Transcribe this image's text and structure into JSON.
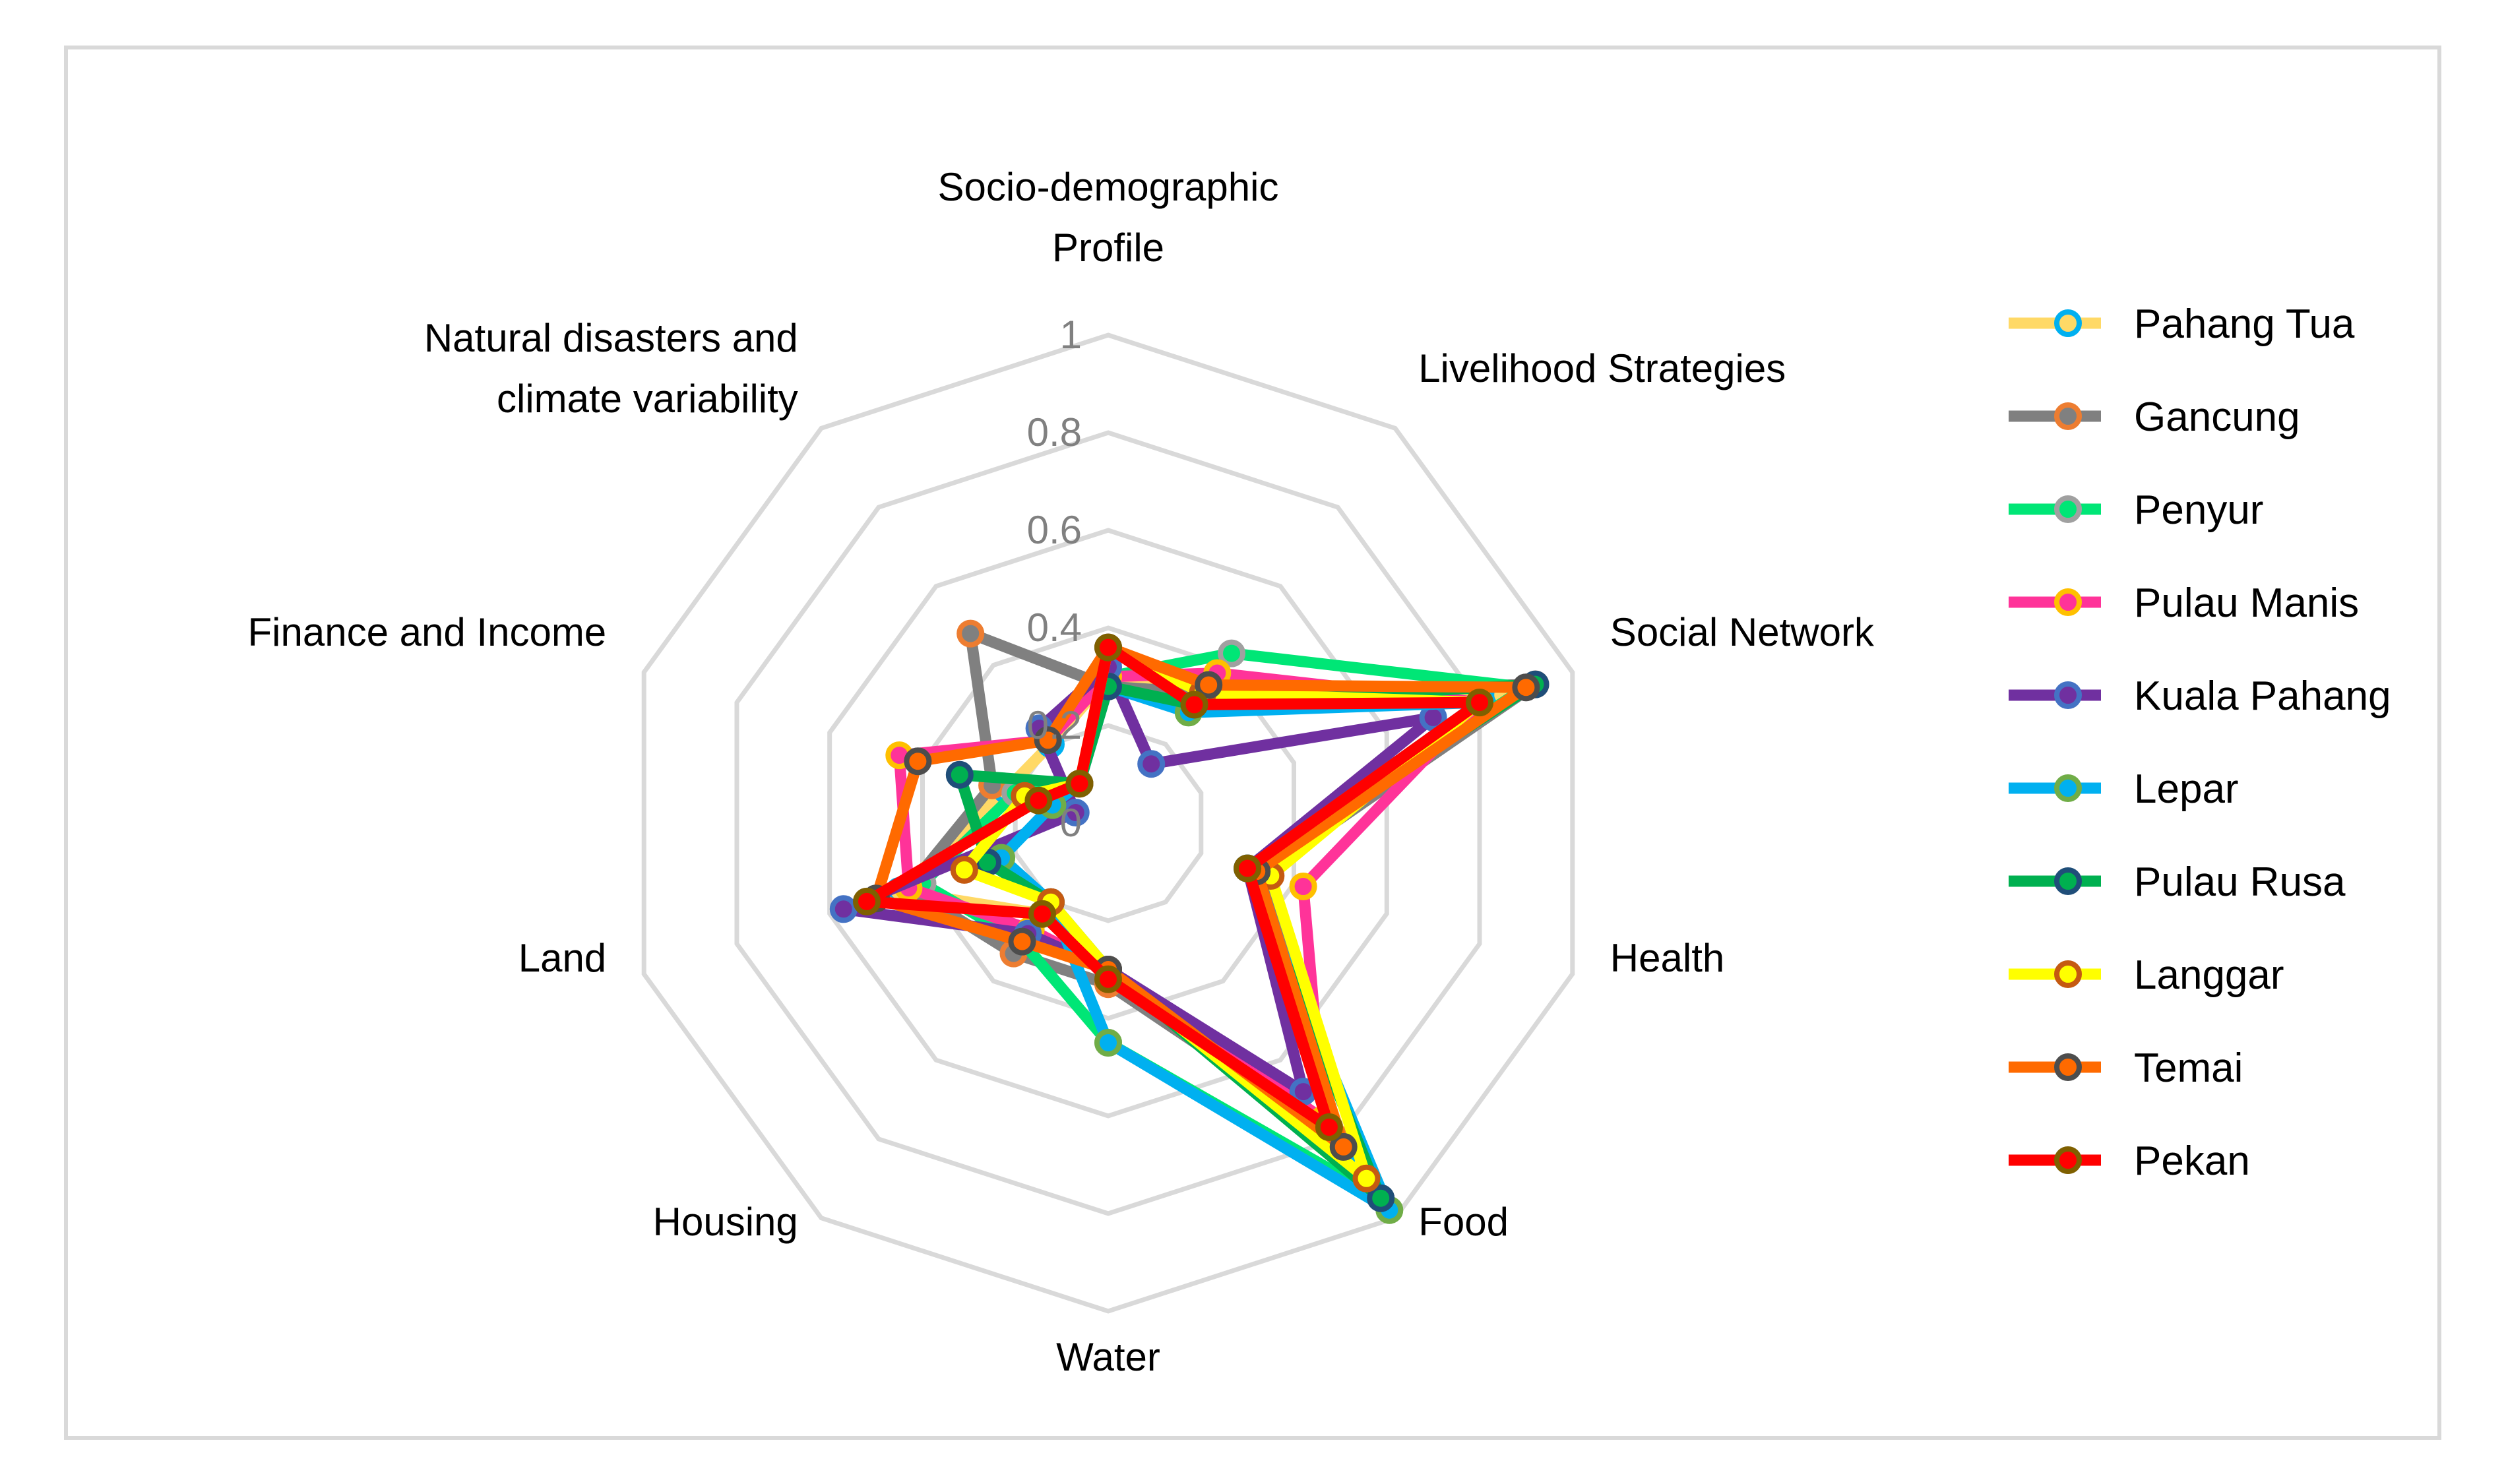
{
  "chart_data": {
    "type": "radar",
    "title": "",
    "axes": [
      [
        "Socio-demographic",
        "Profile"
      ],
      [
        "Livelihood Strategies"
      ],
      [
        "Social Network"
      ],
      [
        "Health"
      ],
      [
        "Food"
      ],
      [
        "Water"
      ],
      [
        "Housing"
      ],
      [
        "Land"
      ],
      [
        "Finance and Income"
      ],
      [
        "Natural disasters and",
        "climate variability"
      ]
    ],
    "r_range": [
      0,
      1
    ],
    "ticks": [
      "0",
      "0.2",
      "0.4",
      "0.6",
      "0.8",
      "1"
    ],
    "tick_values": [
      0,
      0.2,
      0.4,
      0.6,
      0.8,
      1
    ],
    "legend_position": "right",
    "series": [
      {
        "name": "Pahang Tua",
        "line_color": "#FFD966",
        "marker_fill": "#FFD966",
        "marker_edge": "#00B0F0",
        "values": [
          0.3,
          0.33,
          0.85,
          0.3,
          0.83,
          0.3,
          0.23,
          0.45,
          0.22,
          0.2
        ]
      },
      {
        "name": "Gancung",
        "line_color": "#808080",
        "marker_fill": "#808080",
        "marker_edge": "#ED7D31",
        "values": [
          0.28,
          0.33,
          0.92,
          0.33,
          0.8,
          0.33,
          0.33,
          0.43,
          0.25,
          0.48
        ]
      },
      {
        "name": "Penyur",
        "line_color": "#00E676",
        "marker_fill": "#00E676",
        "marker_edge": "#A0A0A0",
        "values": [
          0.3,
          0.43,
          0.9,
          0.3,
          0.95,
          0.45,
          0.3,
          0.4,
          0.2,
          0.1
        ]
      },
      {
        "name": "Pulau Manis",
        "line_color": "#FF3399",
        "marker_fill": "#FF3399",
        "marker_edge": "#FFC000",
        "values": [
          0.3,
          0.38,
          0.8,
          0.42,
          0.75,
          0.3,
          0.27,
          0.43,
          0.45,
          0.21
        ]
      },
      {
        "name": "Kuala Pahang",
        "line_color": "#7030A0",
        "marker_fill": "#7030A0",
        "marker_edge": "#4472C4",
        "values": [
          0.32,
          0.15,
          0.7,
          0.3,
          0.68,
          0.3,
          0.28,
          0.57,
          0.07,
          0.24
        ]
      },
      {
        "name": "Lepar",
        "line_color": "#00B0F0",
        "marker_fill": "#00B0F0",
        "marker_edge": "#70AD47",
        "values": [
          0.28,
          0.28,
          0.8,
          0.3,
          0.98,
          0.45,
          0.2,
          0.23,
          0.12,
          0.1
        ]
      },
      {
        "name": "Pulau Rusa",
        "line_color": "#00B050",
        "marker_fill": "#00B050",
        "marker_edge": "#1F4E79",
        "values": [
          0.28,
          0.3,
          0.92,
          0.3,
          0.95,
          0.3,
          0.2,
          0.26,
          0.32,
          0.1
        ]
      },
      {
        "name": "Langgar",
        "line_color": "#FFFF00",
        "marker_fill": "#FFFF00",
        "marker_edge": "#C55A11",
        "values": [
          0.36,
          0.33,
          0.8,
          0.35,
          0.9,
          0.3,
          0.2,
          0.31,
          0.18,
          0.1
        ]
      },
      {
        "name": "Temai",
        "line_color": "#FF6A00",
        "marker_fill": "#FF6A00",
        "marker_edge": "#4D4D4D",
        "values": [
          0.36,
          0.35,
          0.9,
          0.32,
          0.82,
          0.3,
          0.3,
          0.5,
          0.41,
          0.21
        ]
      },
      {
        "name": "Pekan",
        "line_color": "#FF0000",
        "marker_fill": "#FF0000",
        "marker_edge": "#7F6000",
        "values": [
          0.36,
          0.3,
          0.8,
          0.3,
          0.77,
          0.32,
          0.23,
          0.52,
          0.15,
          0.1
        ]
      }
    ]
  }
}
